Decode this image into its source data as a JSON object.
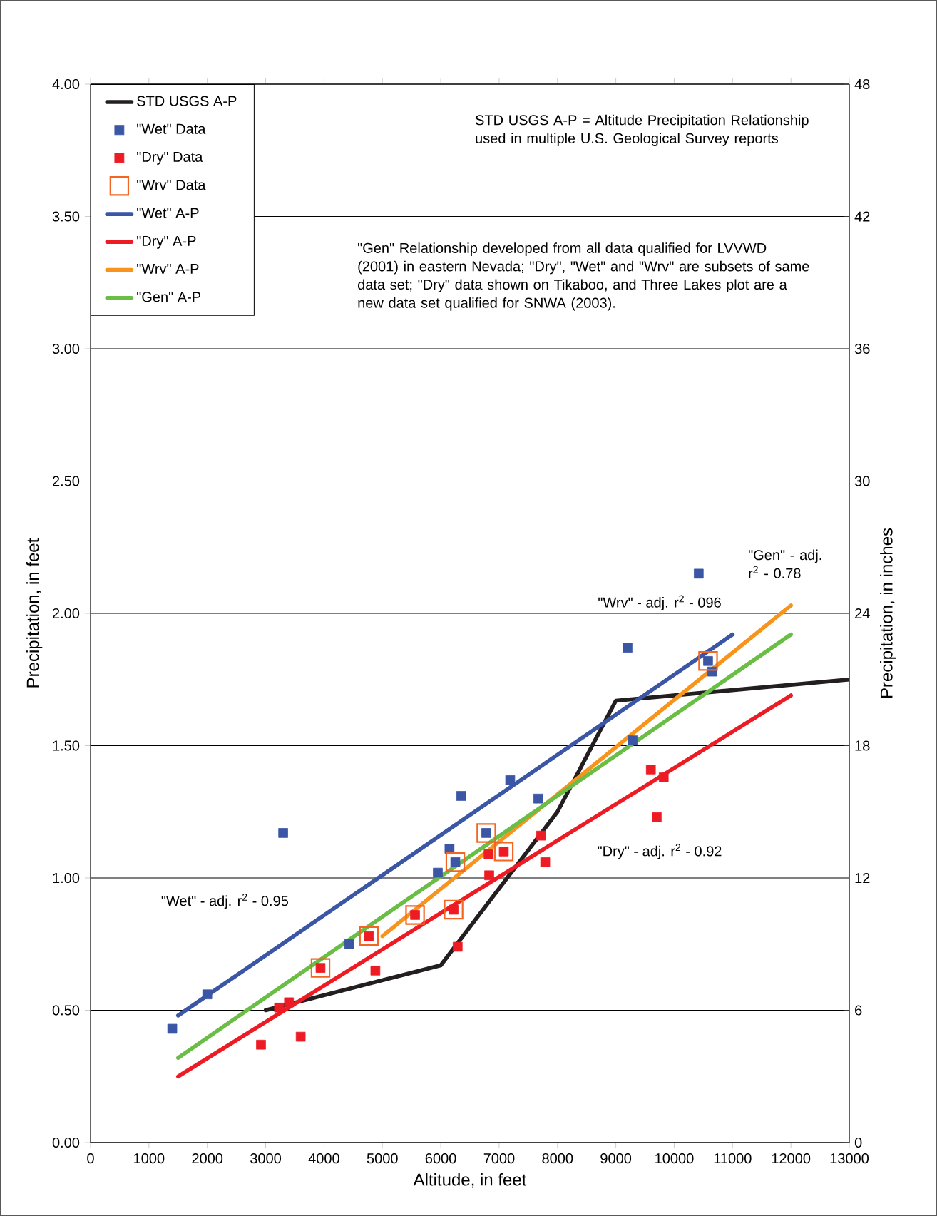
{
  "chart_data": {
    "type": "scatter",
    "xlabel": "Altitude, in feet",
    "ylabel": "Precipitation, in feet",
    "y2label": "Precipitation, in inches",
    "xlim": [
      0,
      13000
    ],
    "ylim": [
      0,
      4
    ],
    "y2lim": [
      0,
      48
    ],
    "xticks": [
      0,
      1000,
      2000,
      3000,
      4000,
      5000,
      6000,
      7000,
      8000,
      9000,
      10000,
      11000,
      12000,
      13000
    ],
    "yticks": [
      {
        "value": 0,
        "label": "0.00"
      },
      {
        "value": 0.5,
        "label": "0.50"
      },
      {
        "value": 1,
        "label": "1.00"
      },
      {
        "value": 1.5,
        "label": "1.50"
      },
      {
        "value": 2,
        "label": "2.00"
      },
      {
        "value": 2.5,
        "label": "2.50"
      },
      {
        "value": 3,
        "label": "3.00"
      },
      {
        "value": 3.5,
        "label": "3.50"
      },
      {
        "value": 4,
        "label": "4.00"
      }
    ],
    "y2ticks": [
      0,
      6,
      12,
      18,
      24,
      30,
      36,
      42,
      48
    ],
    "grid": "y",
    "legend": "top left",
    "series": [
      {
        "name": "STD USGS A-P",
        "type": "line",
        "marker": "none",
        "color": "#231f20",
        "x": [
          3000,
          6000,
          8000,
          9000,
          13000
        ],
        "values": [
          0.5,
          0.67,
          1.25,
          1.67,
          1.75
        ]
      },
      {
        "name": "\"Wet\" Data",
        "marker": "square",
        "color": "#3a56a5",
        "x": [
          1400,
          2000,
          3300,
          4430,
          5950,
          6150,
          6250,
          6350,
          6780,
          7190,
          7670,
          9200,
          9290,
          10420,
          10580,
          10650
        ],
        "values": [
          0.43,
          0.56,
          1.17,
          0.75,
          1.02,
          1.11,
          1.06,
          1.31,
          1.17,
          1.37,
          1.3,
          1.87,
          1.52,
          2.15,
          1.82,
          1.78
        ]
      },
      {
        "name": "\"Dry\" Data",
        "marker": "square",
        "color": "#ed1c24",
        "x": [
          2920,
          3230,
          3400,
          3600,
          3940,
          4770,
          4880,
          5560,
          6220,
          6290,
          6820,
          6830,
          7080,
          7720,
          7790,
          9600,
          9700,
          9820
        ],
        "values": [
          0.37,
          0.51,
          0.53,
          0.4,
          0.66,
          0.78,
          0.65,
          0.86,
          0.88,
          0.74,
          1.09,
          1.01,
          1.1,
          1.16,
          1.06,
          1.41,
          1.23,
          1.38
        ]
      },
      {
        "name": "\"Wrv\" Data",
        "marker": "square",
        "color": "#f26522",
        "x": [
          3940,
          4770,
          5560,
          6220,
          6250,
          6780,
          7080,
          10580
        ],
        "values": [
          0.66,
          0.78,
          0.86,
          0.88,
          1.06,
          1.17,
          1.1,
          1.82
        ]
      },
      {
        "name": "\"Wet\" A-P",
        "type": "line",
        "marker": "none",
        "color": "#3a56a5",
        "x": [
          1500,
          11000
        ],
        "values": [
          0.48,
          1.92
        ]
      },
      {
        "name": "\"Dry\" A-P",
        "type": "line",
        "marker": "none",
        "color": "#ed1c24",
        "x": [
          1500,
          12000
        ],
        "values": [
          0.25,
          1.69
        ]
      },
      {
        "name": "\"Wrv\" A-P",
        "type": "line",
        "marker": "none",
        "color": "#f7941d",
        "x": [
          5000,
          12000
        ],
        "values": [
          0.78,
          2.03
        ]
      },
      {
        "name": "\"Gen\" A-P",
        "type": "line",
        "marker": "none",
        "color": "#6abd45",
        "x": [
          1500,
          12000
        ],
        "values": [
          0.32,
          1.92
        ]
      }
    ],
    "annotations": [
      "STD USGS A-P = Altitude Precipitation Relationship used in multiple U.S. Geological Survey reports",
      "\"Gen\" Relationship developed from all data qualified for LVVWD (2001) in eastern Nevada; \"Dry\", \"Wet\" and \"Wrv\" are subsets of same data set;  \"Dry\" data shown on Tikaboo, and Three Lakes plot are a new data set qualified for SNWA (2003).",
      "\"Wet\" - adj. r$^{2}$ - 0.95",
      "\"Dry\" - adj. r$^{2}$ - 0.92",
      "\"Wrv\" - adj. r$^{2}$ - 096",
      "\"Gen\" - adj. r$^{2}$ - 0.78"
    ]
  }
}
